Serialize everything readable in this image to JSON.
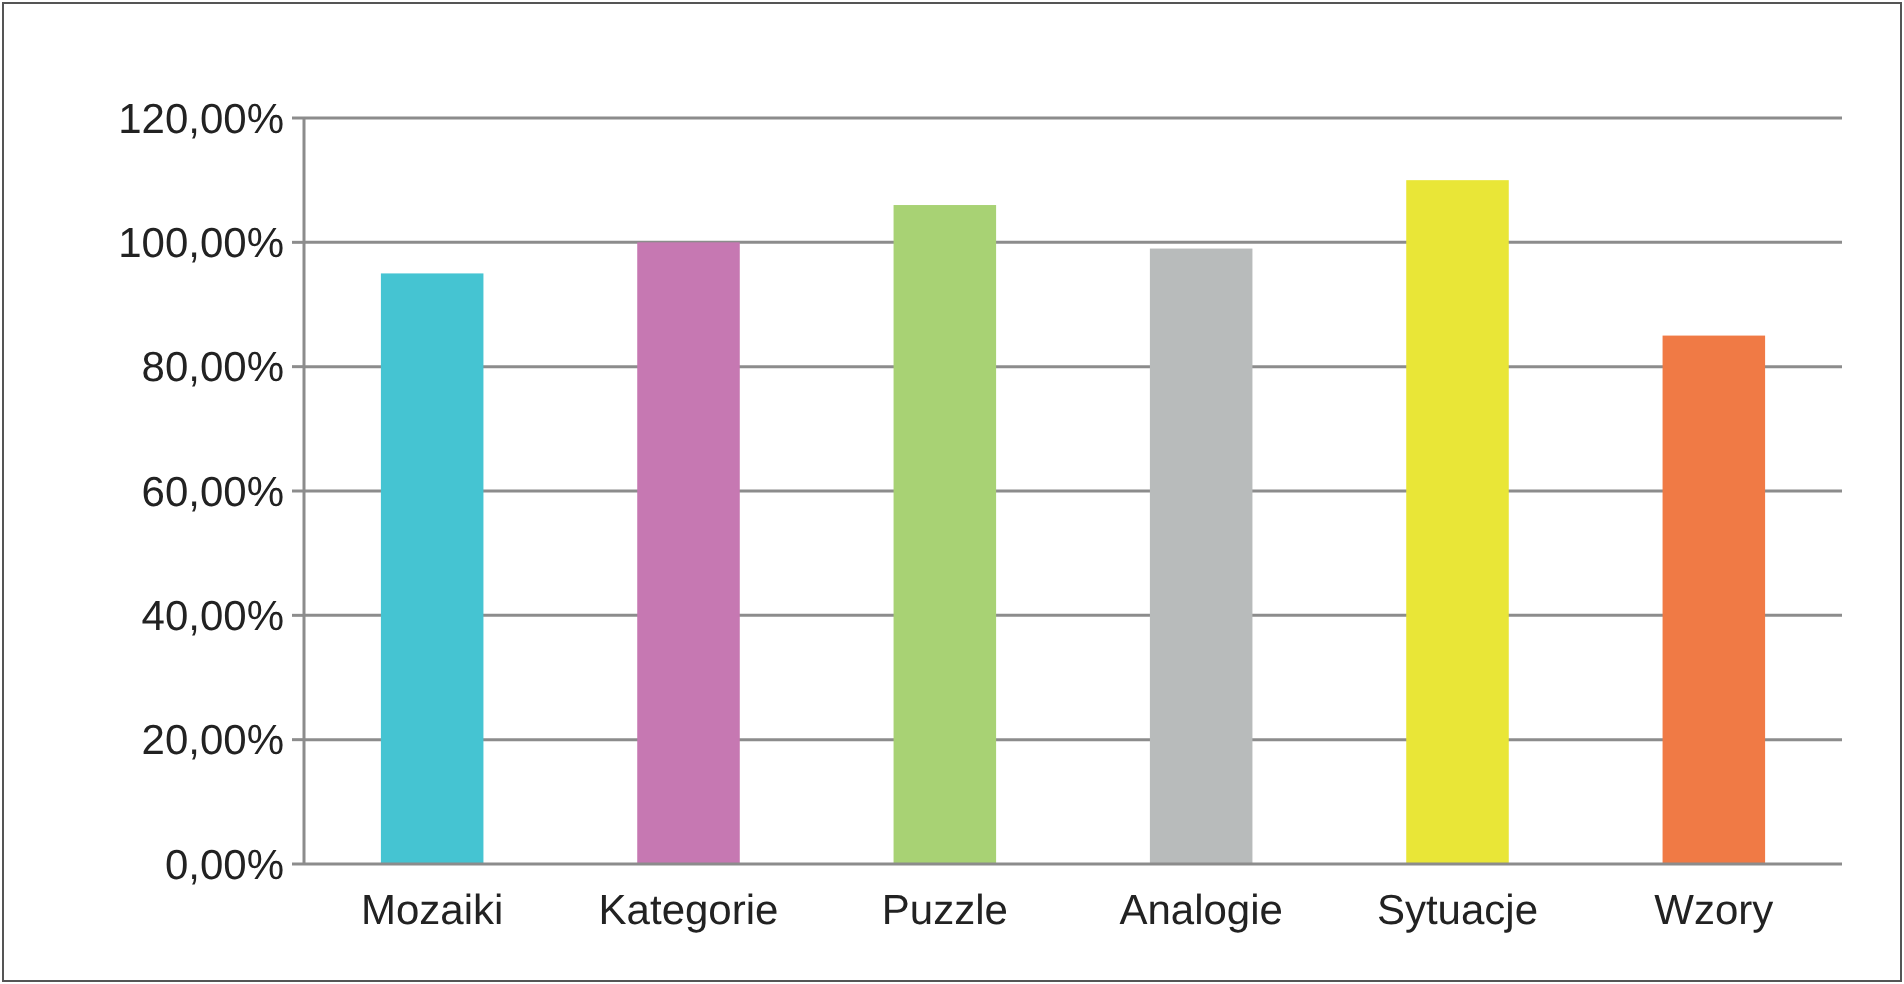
{
  "chart_data": {
    "type": "bar",
    "categories": [
      "Mozaiki",
      "Kategorie",
      "Puzzle",
      "Analogie",
      "Sytuacje",
      "Wzory"
    ],
    "values": [
      95,
      100,
      106,
      99,
      110,
      85
    ],
    "colors": [
      "#45c4d2",
      "#c678b2",
      "#a8d274",
      "#b8bbbb",
      "#e9e637",
      "#f07a45"
    ],
    "ylim": [
      0,
      120
    ],
    "yticks": [
      {
        "value": 0,
        "label": "0,00%"
      },
      {
        "value": 20,
        "label": "20,00%"
      },
      {
        "value": 40,
        "label": "40,00%"
      },
      {
        "value": 60,
        "label": "60,00%"
      },
      {
        "value": 80,
        "label": "80,00%"
      },
      {
        "value": 100,
        "label": "100,00%"
      },
      {
        "value": 120,
        "label": "120,00%"
      }
    ],
    "grid": "y"
  }
}
